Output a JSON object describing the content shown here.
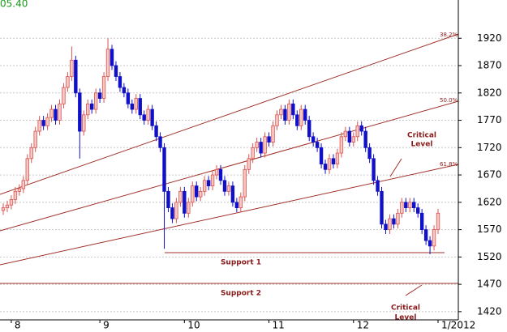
{
  "chart_data": {
    "type": "candlestick",
    "price_label": "05.40",
    "categories": [
      null,
      null,
      "8",
      null,
      null,
      null,
      null,
      null,
      null,
      null,
      null,
      null,
      null,
      null,
      null,
      null,
      null,
      null,
      null,
      null,
      null,
      null,
      null,
      null,
      "9",
      null,
      null,
      null,
      null,
      null,
      null,
      null,
      null,
      null,
      null,
      null,
      null,
      null,
      null,
      null,
      null,
      null,
      null,
      null,
      null,
      "10",
      null,
      null,
      null,
      null,
      null,
      null,
      null,
      null,
      null,
      null,
      null,
      null,
      null,
      null,
      null,
      null,
      null,
      null,
      null,
      null,
      "11",
      null,
      null,
      null,
      null,
      null,
      null,
      null,
      null,
      null,
      null,
      null,
      null,
      null,
      null,
      null,
      null,
      null,
      null,
      null,
      null,
      "12",
      null,
      null,
      null,
      null,
      null,
      null,
      null,
      null,
      null,
      null,
      null,
      null,
      null,
      null,
      null,
      null,
      null,
      null,
      null,
      null,
      "1/2012"
    ],
    "open": [
      1605,
      1610,
      1615,
      1625,
      1640,
      1645,
      1660,
      1700,
      1720,
      1750,
      1770,
      1760,
      1775,
      1790,
      1770,
      1800,
      1830,
      1850,
      1880,
      1820,
      1750,
      1780,
      1800,
      1790,
      1820,
      1810,
      1850,
      1900,
      1870,
      1850,
      1830,
      1820,
      1800,
      1790,
      1810,
      1780,
      1770,
      1790,
      1760,
      1740,
      1720,
      1640,
      1610,
      1590,
      1620,
      1640,
      1600,
      1620,
      1650,
      1630,
      1640,
      1660,
      1650,
      1670,
      1680,
      1660,
      1640,
      1650,
      1620,
      1610,
      1630,
      1680,
      1700,
      1720,
      1730,
      1710,
      1740,
      1730,
      1760,
      1780,
      1790,
      1770,
      1800,
      1780,
      1760,
      1790,
      1770,
      1740,
      1730,
      1720,
      1690,
      1680,
      1700,
      1690,
      1710,
      1740,
      1750,
      1730,
      1740,
      1760,
      1750,
      1720,
      1700,
      1660,
      1640,
      1580,
      1570,
      1590,
      1580,
      1600,
      1620,
      1610,
      1620,
      1610,
      1600,
      1570,
      1550,
      1540,
      1570
    ],
    "high": [
      1618,
      1623,
      1633,
      1648,
      1653,
      1668,
      1708,
      1728,
      1758,
      1778,
      1778,
      1783,
      1798,
      1798,
      1808,
      1838,
      1858,
      1905,
      1888,
      1828,
      1788,
      1808,
      1808,
      1828,
      1828,
      1858,
      1920,
      1908,
      1878,
      1858,
      1838,
      1828,
      1808,
      1818,
      1818,
      1788,
      1798,
      1798,
      1768,
      1748,
      1728,
      1648,
      1618,
      1628,
      1648,
      1648,
      1628,
      1658,
      1658,
      1648,
      1668,
      1668,
      1678,
      1688,
      1688,
      1668,
      1658,
      1658,
      1628,
      1638,
      1688,
      1708,
      1728,
      1738,
      1738,
      1748,
      1748,
      1768,
      1788,
      1798,
      1798,
      1808,
      1808,
      1788,
      1798,
      1798,
      1778,
      1748,
      1738,
      1728,
      1698,
      1708,
      1708,
      1718,
      1748,
      1758,
      1758,
      1748,
      1768,
      1768,
      1758,
      1728,
      1708,
      1668,
      1648,
      1588,
      1598,
      1598,
      1608,
      1628,
      1628,
      1628,
      1628,
      1618,
      1608,
      1578,
      1558,
      1578,
      1608
    ],
    "low": [
      1597,
      1602,
      1607,
      1617,
      1632,
      1637,
      1652,
      1692,
      1712,
      1742,
      1752,
      1752,
      1767,
      1762,
      1762,
      1792,
      1822,
      1842,
      1812,
      1700,
      1742,
      1772,
      1782,
      1782,
      1802,
      1802,
      1842,
      1862,
      1842,
      1822,
      1812,
      1792,
      1782,
      1782,
      1772,
      1762,
      1762,
      1752,
      1732,
      1712,
      1535,
      1602,
      1582,
      1582,
      1612,
      1592,
      1592,
      1612,
      1622,
      1622,
      1632,
      1642,
      1642,
      1662,
      1652,
      1632,
      1632,
      1612,
      1602,
      1602,
      1622,
      1672,
      1692,
      1712,
      1702,
      1702,
      1722,
      1722,
      1752,
      1772,
      1762,
      1762,
      1772,
      1752,
      1752,
      1762,
      1732,
      1722,
      1712,
      1682,
      1672,
      1672,
      1682,
      1682,
      1702,
      1732,
      1722,
      1722,
      1732,
      1742,
      1712,
      1692,
      1652,
      1632,
      1572,
      1562,
      1562,
      1572,
      1572,
      1592,
      1602,
      1602,
      1602,
      1592,
      1562,
      1542,
      1525,
      1532,
      1562
    ],
    "close": [
      1610,
      1615,
      1625,
      1640,
      1645,
      1660,
      1700,
      1720,
      1750,
      1770,
      1760,
      1775,
      1790,
      1770,
      1800,
      1830,
      1850,
      1880,
      1820,
      1750,
      1780,
      1800,
      1790,
      1820,
      1810,
      1850,
      1900,
      1870,
      1850,
      1830,
      1820,
      1800,
      1790,
      1810,
      1780,
      1770,
      1790,
      1760,
      1740,
      1720,
      1640,
      1610,
      1590,
      1620,
      1640,
      1600,
      1620,
      1650,
      1630,
      1640,
      1660,
      1650,
      1670,
      1680,
      1660,
      1640,
      1650,
      1620,
      1610,
      1630,
      1680,
      1700,
      1720,
      1730,
      1710,
      1740,
      1730,
      1760,
      1780,
      1790,
      1770,
      1800,
      1780,
      1760,
      1790,
      1770,
      1740,
      1730,
      1720,
      1690,
      1680,
      1700,
      1690,
      1710,
      1740,
      1750,
      1730,
      1740,
      1760,
      1750,
      1720,
      1700,
      1660,
      1640,
      1580,
      1570,
      1590,
      1580,
      1600,
      1620,
      1610,
      1620,
      1610,
      1600,
      1570,
      1550,
      1540,
      1570,
      1600
    ],
    "up_color": "#d9534f",
    "up_fill": "#f6c9c6",
    "down_color": "#1010c8",
    "ylim": [
      1405,
      1990
    ],
    "yticks": [
      1420,
      1470,
      1520,
      1570,
      1620,
      1670,
      1720,
      1770,
      1820,
      1870,
      1920
    ],
    "grid": true,
    "fib_labels": [
      "38.2%",
      "50.0%",
      "61.8%"
    ],
    "annotations": {
      "critical_top": [
        "Critical",
        "Level"
      ],
      "support_1": "Support 1",
      "support_2": "Support 2",
      "critical_bottom": [
        "Critical",
        "Level"
      ]
    }
  }
}
